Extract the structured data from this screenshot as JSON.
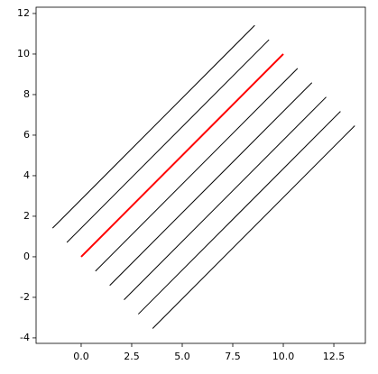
{
  "chart_data": {
    "type": "line",
    "xlim": [
      -2.23,
      14.06
    ],
    "ylim": [
      -4.27,
      12.31
    ],
    "xticks": [
      {
        "value": 0,
        "label": "0.0"
      },
      2.5,
      {
        "value": 5,
        "label": "5.0"
      },
      7.5,
      {
        "value": 10,
        "label": "10.0"
      },
      12.5
    ],
    "yticks": [
      -4,
      -2,
      0,
      2,
      4,
      6,
      8,
      10,
      12
    ],
    "series": [
      {
        "color": "#000000",
        "linewidth": 1,
        "x": [
          -1.414,
          8.586
        ],
        "values": [
          1.414,
          11.414
        ]
      },
      {
        "color": "#000000",
        "linewidth": 1,
        "x": [
          -0.707,
          9.293
        ],
        "values": [
          0.707,
          10.707
        ]
      },
      {
        "color": "#ff0000",
        "linewidth": 2,
        "x": [
          0,
          10
        ],
        "values": [
          0,
          10
        ]
      },
      {
        "color": "#000000",
        "linewidth": 1,
        "x": [
          0.707,
          10.707
        ],
        "values": [
          -0.707,
          9.293
        ]
      },
      {
        "color": "#000000",
        "linewidth": 1,
        "x": [
          1.414,
          11.414
        ],
        "values": [
          -1.414,
          8.586
        ]
      },
      {
        "color": "#000000",
        "linewidth": 1,
        "x": [
          2.121,
          12.121
        ],
        "values": [
          -2.121,
          7.879
        ]
      },
      {
        "color": "#000000",
        "linewidth": 1,
        "x": [
          2.828,
          12.828
        ],
        "values": [
          -2.828,
          7.172
        ]
      },
      {
        "color": "#000000",
        "linewidth": 1,
        "x": [
          3.536,
          13.536
        ],
        "values": [
          -3.536,
          6.464
        ]
      }
    ]
  }
}
